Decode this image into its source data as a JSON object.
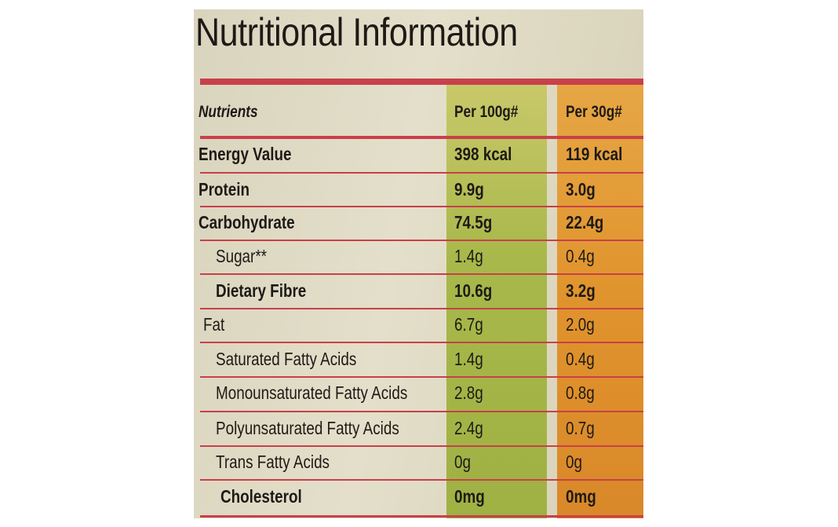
{
  "title": "Nutritional Information",
  "table": {
    "header": [
      "Nutrients",
      "Per 100g#",
      "Per 30g#"
    ],
    "rows": [
      [
        "Energy Value",
        "398 kcal",
        "119 kcal"
      ],
      [
        "Protein",
        "9.9g",
        "3.0g"
      ],
      [
        "Carbohydrate",
        "74.5g",
        "22.4g"
      ],
      [
        "Sugar**",
        "1.4g",
        "0.4g"
      ],
      [
        "Dietary Fibre",
        "10.6g",
        "3.2g"
      ],
      [
        "Fat",
        "6.7g",
        "2.0g"
      ],
      [
        "Saturated Fatty Acids",
        "1.4g",
        "0.4g"
      ],
      [
        "Monounsaturated Fatty Acids",
        "2.8g",
        "0.8g"
      ],
      [
        "Polyunsaturated Fatty Acids",
        "2.4g",
        "0.7g"
      ],
      [
        "Trans Fatty Acids",
        "0g",
        "0g"
      ],
      [
        "Cholesterol",
        "0mg",
        "0mg"
      ]
    ]
  }
}
